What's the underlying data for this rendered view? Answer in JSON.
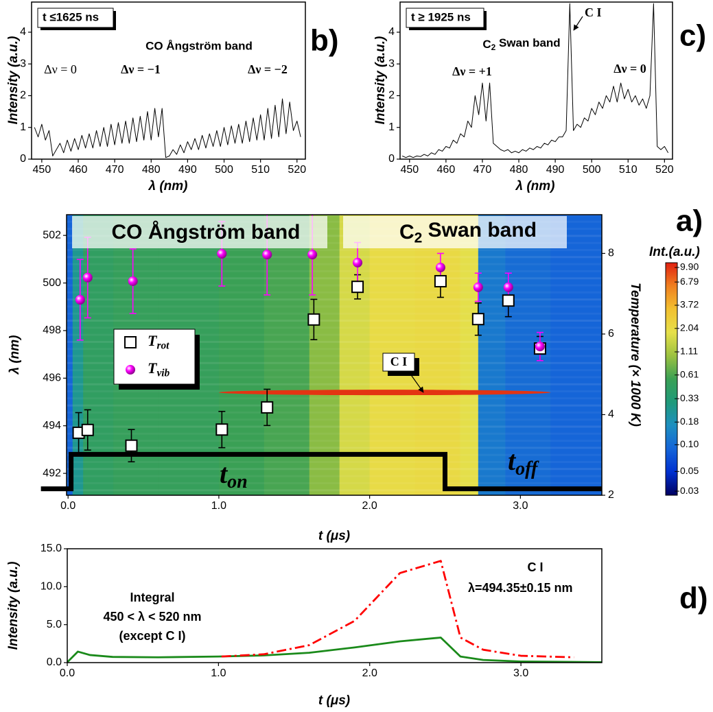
{
  "chart_data": [
    {
      "type": "line",
      "label": "b)",
      "inset_label": "t ≤1625 ns",
      "xlabel": "λ (nm)",
      "ylabel": "Intensity (a.u.)",
      "xlim": [
        447.2,
        522.3
      ],
      "xticks": [
        450,
        460,
        470,
        480,
        490,
        500,
        510,
        520
      ],
      "ylim": [
        0,
        4.95
      ],
      "yticks": [
        0,
        1,
        2,
        3,
        4
      ],
      "annotations": [
        "CO Ångström band",
        "Δν = 0",
        "Δν = −1",
        "Δν = −2"
      ],
      "series": [
        {
          "color": "#000000",
          "x": [
            448,
            449,
            450,
            451,
            452,
            453,
            454,
            455,
            456,
            457,
            458,
            459,
            460,
            461,
            462,
            463,
            464,
            465,
            466,
            467,
            468,
            469,
            470,
            471,
            472,
            473,
            474,
            475,
            476,
            477,
            478,
            479,
            480,
            481,
            482,
            483,
            484,
            485,
            486,
            487,
            488,
            489,
            490,
            491,
            492,
            493,
            494,
            495,
            496,
            497,
            498,
            499,
            500,
            501,
            502,
            503,
            504,
            505,
            506,
            507,
            508,
            509,
            510,
            511,
            512,
            513,
            514,
            515,
            516,
            517,
            518,
            519,
            520,
            521
          ],
          "values": [
            1.0,
            0.7,
            1.1,
            0.6,
            0.9,
            0.1,
            0.3,
            0.5,
            0.2,
            0.6,
            0.25,
            0.65,
            0.3,
            0.75,
            0.35,
            0.8,
            0.35,
            0.9,
            0.4,
            1.0,
            0.4,
            1.1,
            0.45,
            1.15,
            0.5,
            1.2,
            0.5,
            1.3,
            0.55,
            1.35,
            0.6,
            1.5,
            0.6,
            1.6,
            0.7,
            1.6,
            0.05,
            0.1,
            0.3,
            0.15,
            0.45,
            0.2,
            0.55,
            0.3,
            0.65,
            0.3,
            0.75,
            0.35,
            0.8,
            0.4,
            0.9,
            0.4,
            1.0,
            0.45,
            1.05,
            0.5,
            1.1,
            0.5,
            1.2,
            0.55,
            1.3,
            0.6,
            1.4,
            0.6,
            1.6,
            0.65,
            1.7,
            0.7,
            1.9,
            0.8,
            1.8,
            0.9,
            1.2,
            0.7
          ]
        }
      ]
    },
    {
      "type": "line",
      "label": "c)",
      "inset_label": "t ≥ 1925 ns",
      "xlabel": "λ (nm)",
      "ylabel": "Intensity (a.u.)",
      "xlim": [
        447.4,
        522.2
      ],
      "xticks": [
        450,
        460,
        470,
        480,
        490,
        500,
        510,
        520
      ],
      "ylim": [
        0,
        4.95
      ],
      "yticks": [
        0,
        1,
        2,
        3,
        4
      ],
      "annotations": [
        "C I",
        [
          "C",
          {
            "sub": "2"
          },
          " Swan band"
        ],
        "Δν = +1",
        "Δν = 0"
      ],
      "series": [
        {
          "color": "#000000",
          "x": [
            448,
            449,
            450,
            451,
            452,
            453,
            454,
            455,
            456,
            457,
            458,
            459,
            460,
            461,
            462,
            463,
            464,
            465,
            466,
            467,
            468,
            469,
            470,
            471,
            472,
            473,
            474,
            475,
            476,
            477,
            478,
            479,
            480,
            481,
            482,
            483,
            484,
            485,
            486,
            487,
            488,
            489,
            490,
            491,
            492,
            493,
            494,
            495,
            496,
            497,
            498,
            499,
            500,
            501,
            502,
            503,
            504,
            505,
            506,
            507,
            508,
            509,
            510,
            511,
            512,
            513,
            514,
            515,
            516,
            517,
            518,
            519,
            520,
            521
          ],
          "values": [
            0.1,
            0.05,
            0.1,
            0.05,
            0.1,
            0.08,
            0.15,
            0.1,
            0.2,
            0.15,
            0.3,
            0.25,
            0.4,
            0.35,
            0.6,
            0.5,
            0.8,
            0.7,
            1.2,
            1.0,
            2.0,
            1.4,
            2.4,
            1.2,
            2.4,
            0.5,
            0.4,
            0.3,
            0.25,
            0.3,
            0.2,
            0.25,
            0.2,
            0.3,
            0.25,
            0.35,
            0.3,
            0.4,
            0.35,
            0.5,
            0.45,
            0.6,
            0.55,
            0.7,
            0.7,
            0.9,
            4.9,
            0.9,
            1.1,
            1.0,
            1.3,
            1.2,
            1.6,
            1.4,
            1.8,
            1.6,
            2.0,
            1.8,
            2.3,
            1.8,
            2.4,
            1.9,
            2.2,
            1.8,
            2.0,
            1.7,
            1.9,
            1.6,
            2.0,
            4.9,
            0.4,
            0.3,
            0.4,
            0.2
          ]
        }
      ]
    },
    {
      "type": "heatmap",
      "label": "a)",
      "xlabel": "t (μs)",
      "ylabel": "λ (nm)",
      "y2label": "Temperature (× 1000 K)",
      "xlim": [
        -0.01,
        3.54
      ],
      "xticks": [
        {
          "value": 0,
          "label": "0.0"
        },
        {
          "value": 1,
          "label": "1.0"
        },
        {
          "value": 2,
          "label": "2.0"
        },
        {
          "value": 3,
          "label": "3.0"
        }
      ],
      "ylim": [
        491.08,
        502.87
      ],
      "yticks": [
        492,
        494,
        496,
        498,
        500,
        502
      ],
      "y2lim": [
        2,
        8.96
      ],
      "y2ticks": [
        2,
        4,
        6,
        8
      ],
      "heatmap": {
        "t": [
          -0.01,
          0.03,
          0.1,
          0.3,
          0.6,
          1.0,
          1.3,
          1.6,
          1.8,
          2.0,
          2.3,
          2.6,
          2.72,
          2.9,
          3.2,
          3.54
        ],
        "intensity": [
          0.09,
          0.25,
          0.45,
          0.5,
          0.5,
          0.55,
          0.6,
          0.9,
          1.6,
          2.0,
          2.1,
          1.8,
          0.12,
          0.1,
          0.09
        ]
      },
      "line_feature": {
        "label": "C I",
        "lambda": 495.4,
        "t": [
          1.0,
          3.2
        ],
        "intensity": 9.9
      },
      "colorbar": {
        "title": "Int.(a.u.)",
        "log": true,
        "lim": [
          0.027,
          11.2
        ],
        "ticks": [
          {
            "value": 9.9,
            "label": "9.90"
          },
          6.79,
          3.72,
          2.04,
          1.11,
          0.61,
          0.33,
          0.18,
          {
            "value": 0.1,
            "label": "0.10"
          },
          0.05,
          0.03
        ],
        "colormap": [
          "#000060",
          "#0030d0",
          "#1565d8",
          "#1e8fc0",
          "#1f9a7a",
          "#3aa055",
          "#9cc240",
          "#e6e04a",
          "#f2c030",
          "#f08020",
          "#e02010"
        ]
      },
      "band_labels": [
        [
          "CO Ångström band"
        ],
        [
          "C",
          {
            "sub": "2"
          },
          " Swan band"
        ]
      ],
      "pulse": {
        "color": "#000000",
        "t": [
          -0.18,
          0.02,
          0.02,
          2.5,
          2.5,
          3.54
        ],
        "lambda": [
          491.35,
          491.35,
          492.8,
          492.8,
          491.35,
          491.35
        ],
        "labels": [
          [
            "t",
            {
              "sub": "on"
            }
          ],
          [
            "t",
            {
              "sub": "off"
            }
          ]
        ]
      },
      "series": [
        {
          "name": [
            "T",
            {
              "sub": "rot"
            }
          ],
          "marker": "square",
          "color": "#000000",
          "axis": "y2",
          "x": [
            0.07,
            0.13,
            0.42,
            1.02,
            1.32,
            1.63,
            1.92,
            2.47,
            2.72,
            2.92,
            3.13
          ],
          "values": [
            3.55,
            3.62,
            3.23,
            3.63,
            4.18,
            6.36,
            7.17,
            7.31,
            6.37,
            6.83,
            5.64
          ],
          "errors": [
            0.5,
            0.5,
            0.4,
            0.45,
            0.45,
            0.5,
            0.3,
            0.4,
            0.4,
            0.4,
            0.3
          ]
        },
        {
          "name": [
            "T",
            {
              "sub": "vib"
            }
          ],
          "marker": "sphere",
          "color": "#ff00ff",
          "axis": "y2",
          "x": [
            0.08,
            0.13,
            0.43,
            1.02,
            1.32,
            1.62,
            1.92,
            2.47,
            2.72,
            2.92,
            3.13
          ],
          "values": [
            6.85,
            7.4,
            7.31,
            7.99,
            7.97,
            7.97,
            7.77,
            7.65,
            7.16,
            7.16,
            5.69
          ],
          "errors": [
            1.0,
            1.0,
            0.8,
            0.8,
            1.0,
            1.0,
            0.5,
            0.35,
            0.35,
            0.35,
            0.35
          ]
        }
      ]
    },
    {
      "type": "line",
      "label": "d)",
      "xlabel": "t (μs)",
      "ylabel": "Intensity (a.u.)",
      "xlim": [
        0,
        3.535
      ],
      "xticks": [
        {
          "value": 0,
          "label": "0.0"
        },
        {
          "value": 1,
          "label": "1.0"
        },
        {
          "value": 2,
          "label": "2.0"
        },
        {
          "value": 3,
          "label": "3.0"
        }
      ],
      "ylim": [
        0,
        15
      ],
      "yticks": [
        {
          "value": 0,
          "label": "0.0"
        },
        {
          "value": 5,
          "label": "5.0"
        },
        {
          "value": 10,
          "label": "10.0"
        },
        {
          "value": 15,
          "label": "15.0"
        }
      ],
      "annotations": [
        {
          "text": "C I",
          "color": "#ff0000"
        },
        {
          "text": "λ=494.35±0.15 nm",
          "color": "#ff0000"
        },
        {
          "text": "Integral",
          "color": "#1a8a1a"
        },
        {
          "text": "450 < λ < 520 nm",
          "color": "#1a8a1a"
        },
        {
          "text": "(except C I)",
          "color": "#1a8a1a"
        }
      ],
      "series": [
        {
          "color": "#1a8a1a",
          "x": [
            0,
            0.07,
            0.15,
            0.3,
            0.6,
            1.0,
            1.3,
            1.6,
            1.9,
            2.2,
            2.47,
            2.6,
            2.75,
            3.0,
            3.3,
            3.54
          ],
          "values": [
            0.05,
            1.45,
            1.0,
            0.75,
            0.7,
            0.8,
            0.95,
            1.3,
            2.0,
            2.8,
            3.3,
            0.8,
            0.35,
            0.15,
            0.1,
            0.05
          ]
        },
        {
          "color": "#ff0000",
          "dash": "dashdot",
          "x": [
            1.02,
            1.3,
            1.6,
            1.9,
            2.2,
            2.47,
            2.6,
            2.75,
            3.0,
            3.35
          ],
          "values": [
            0.8,
            1.1,
            2.3,
            5.5,
            11.8,
            13.4,
            3.3,
            1.7,
            0.9,
            0.7
          ]
        }
      ]
    }
  ]
}
